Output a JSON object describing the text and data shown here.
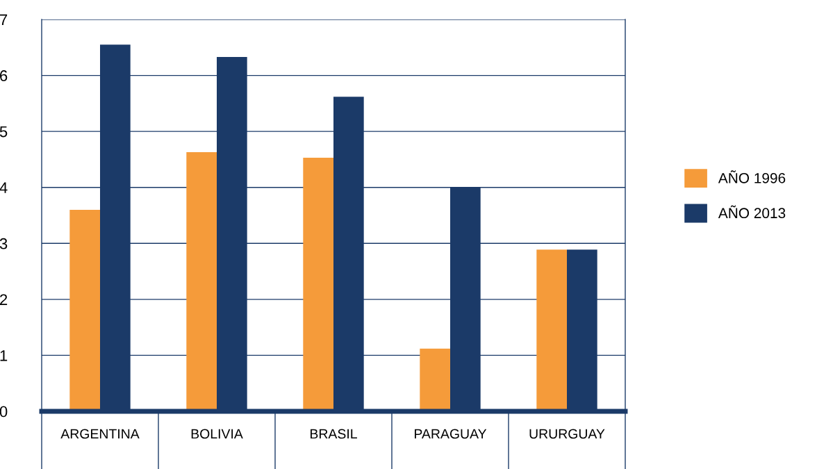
{
  "chart_data": {
    "type": "bar",
    "categories": [
      "ARGENTINA",
      "BOLIVIA",
      "BRASIL",
      "PARAGUAY",
      "URURGUAY"
    ],
    "series": [
      {
        "name": "AÑO 1996",
        "color": "#f59b3a",
        "values": [
          3.6,
          4.63,
          4.53,
          1.12,
          2.89
        ]
      },
      {
        "name": "AÑO 2013",
        "color": "#1b3a68",
        "values": [
          6.55,
          6.33,
          5.62,
          4.0,
          2.89
        ]
      }
    ],
    "ylim": [
      0,
      7
    ],
    "yticks": [
      0,
      1,
      2,
      3,
      4,
      5,
      6,
      7
    ],
    "grid": "y",
    "legend": "right"
  }
}
